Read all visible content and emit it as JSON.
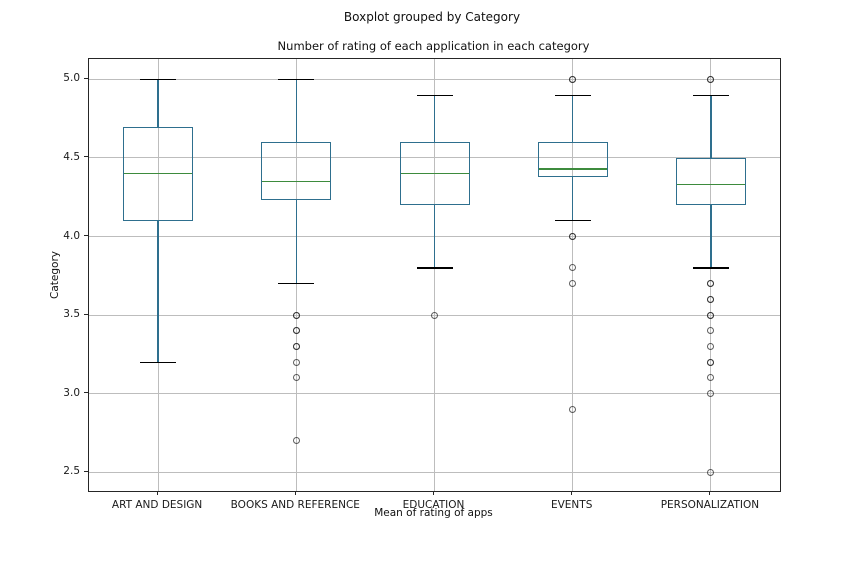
{
  "chart_data": {
    "type": "boxplot",
    "title": "Boxplot grouped by Category",
    "subtitle": "Number of rating of each application in each category",
    "xlabel": "Mean of rating of apps",
    "ylabel": "Category",
    "grid": true,
    "yticks": [
      2.5,
      3.0,
      3.5,
      4.0,
      4.5,
      5.0
    ],
    "ylim": [
      2.38,
      5.13
    ],
    "categories": [
      "ART AND DESIGN",
      "BOOKS AND REFERENCE",
      "EDUCATION",
      "EVENTS",
      "PERSONALIZATION"
    ],
    "boxes": [
      {
        "category": "ART AND DESIGN",
        "whisker_low": 3.2,
        "q1": 4.1,
        "median": 4.4,
        "q3": 4.7,
        "whisker_high": 5.0,
        "fliers": []
      },
      {
        "category": "BOOKS AND REFERENCE",
        "whisker_low": 3.7,
        "q1": 4.23,
        "median": 4.35,
        "q3": 4.6,
        "whisker_high": 5.0,
        "fliers": [
          3.5,
          3.5,
          3.4,
          3.4,
          3.3,
          3.3,
          3.2,
          3.1,
          2.7
        ]
      },
      {
        "category": "EDUCATION",
        "whisker_low": 3.8,
        "q1": 4.2,
        "median": 4.4,
        "q3": 4.6,
        "whisker_high": 4.9,
        "fliers": [
          3.5
        ]
      },
      {
        "category": "EVENTS",
        "whisker_low": 4.1,
        "q1": 4.38,
        "median": 4.43,
        "q3": 4.6,
        "whisker_high": 4.9,
        "fliers": [
          5.0,
          5.0,
          4.0,
          4.0,
          3.8,
          3.7,
          2.9
        ]
      },
      {
        "category": "PERSONALIZATION",
        "whisker_low": 3.8,
        "q1": 4.2,
        "median": 4.33,
        "q3": 4.5,
        "whisker_high": 4.9,
        "fliers": [
          5.0,
          5.0,
          3.7,
          3.7,
          3.6,
          3.6,
          3.5,
          3.5,
          3.4,
          3.3,
          3.2,
          3.2,
          3.1,
          3.0,
          2.5
        ]
      }
    ],
    "colors": {
      "box": "#2e6f8e",
      "whisker": "#2e6f8e",
      "median": "#3d8b3d",
      "cap": "#000000",
      "flier_edge": "#2a2a2a",
      "grid": "#bdbdbd",
      "spine": "#262626",
      "background": "#ffffff"
    }
  }
}
